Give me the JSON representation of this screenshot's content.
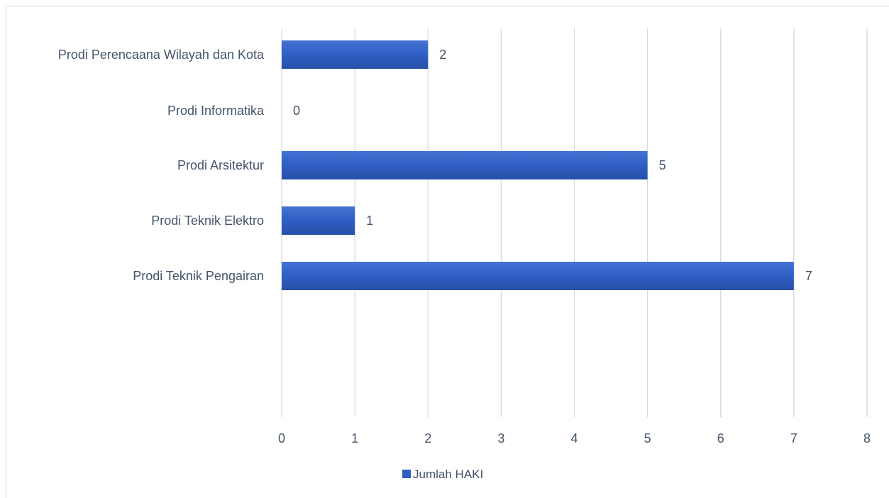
{
  "chart_data": {
    "type": "bar",
    "orientation": "horizontal",
    "categories": [
      "Prodi Perencaana Wilayah dan Kota",
      "Prodi Informatika",
      "Prodi Arsitektur",
      "Prodi Teknik Elektro",
      "Prodi Teknik Pengairan"
    ],
    "series": [
      {
        "name": "Jumlah HAKI",
        "values": [
          2,
          0,
          5,
          1,
          7
        ],
        "color": "#2f5fc4"
      }
    ],
    "xlim": [
      0,
      8
    ],
    "x_ticks": [
      "0",
      "1",
      "2",
      "3",
      "4",
      "5",
      "6",
      "7",
      "8"
    ],
    "grid": "vertical",
    "legend": "bottom",
    "title": "",
    "xlabel": "",
    "ylabel": ""
  }
}
